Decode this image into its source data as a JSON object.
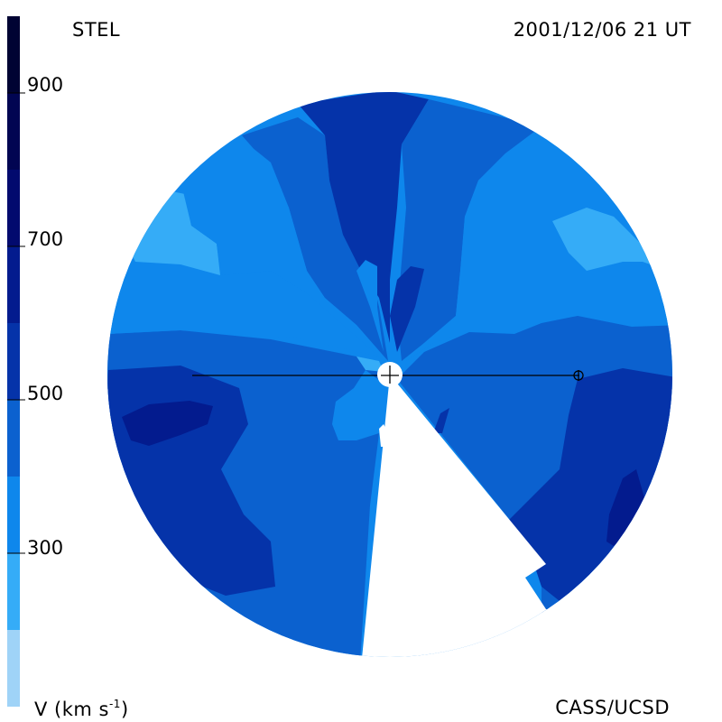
{
  "header": {
    "station": "STEL",
    "datetime": "2001/12/06 21 UT"
  },
  "footer": {
    "credit": "CASS/UCSD"
  },
  "colorbar": {
    "unit_prefix": "V (km s",
    "unit_sup": "-1",
    "unit_suffix": ")",
    "tick_labels": [
      "900",
      "700",
      "500",
      "300"
    ],
    "tick_values": [
      900,
      700,
      500,
      300
    ],
    "range": [
      100,
      1000
    ],
    "bands": [
      {
        "from": 100,
        "to": 200,
        "color": "#9fd3f7"
      },
      {
        "from": 200,
        "to": 300,
        "color": "#35acf7"
      },
      {
        "from": 300,
        "to": 400,
        "color": "#0e87ec"
      },
      {
        "from": 400,
        "to": 500,
        "color": "#0b61cf"
      },
      {
        "from": 500,
        "to": 600,
        "color": "#0533a9"
      },
      {
        "from": 600,
        "to": 700,
        "color": "#031b8e"
      },
      {
        "from": 700,
        "to": 800,
        "color": "#020a6e"
      },
      {
        "from": 800,
        "to": 900,
        "color": "#010552"
      },
      {
        "from": 900,
        "to": 1000,
        "color": "#000333"
      }
    ]
  },
  "colors": {
    "v300_400": "#0e87ec",
    "v200_300": "#35acf7",
    "v400_500": "#0b61cf",
    "v500_600": "#0533a9",
    "v600_700": "#031b8e",
    "v700_800": "#020a6e"
  }
}
